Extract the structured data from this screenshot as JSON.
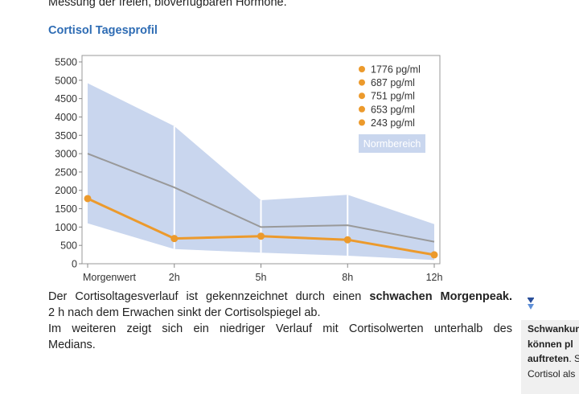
{
  "intro_text": "Messung der freien, bioverfügbaren Hormone.",
  "section_title": "Cortisol Tagesprofil",
  "chart_data": {
    "type": "line",
    "categories": [
      "Morgenwert",
      "2h",
      "5h",
      "8h",
      "12h"
    ],
    "y_ticks": [
      "0",
      "500",
      "1000",
      "1500",
      "2000",
      "2500",
      "3000",
      "3500",
      "4000",
      "4500",
      "5000",
      "5500"
    ],
    "ylim": [
      0,
      5500
    ],
    "grid": false,
    "legend_position": "top-right",
    "series": [
      {
        "values": [
          1776,
          687,
          751,
          653,
          243
        ],
        "color": "#ec9a2c",
        "labels": [
          "1776 pg/ml",
          "687 pg/ml",
          "751 pg/ml",
          "653 pg/ml",
          "243 pg/ml"
        ]
      },
      {
        "values": [
          3000,
          2080,
          1000,
          1050,
          600
        ],
        "color": "#999999"
      }
    ],
    "band": {
      "name": "Normbereich",
      "upper": [
        4920,
        3750,
        1730,
        1880,
        1080
      ],
      "lower": [
        1100,
        400,
        300,
        220,
        100
      ],
      "color": "#c9d6ee"
    }
  },
  "paragraph": {
    "line1_prefix": "Der Cortisoltagesverlauf ist gekennzeichnet durch einen ",
    "line1_bold": "schwachen Morgenpeak",
    "line1_suffix": ".",
    "line2": "2 h nach dem Erwachen sinkt der Cortisolspiegel ab.",
    "line3": "Im weiteren zeigt sich ein niedriger Verlauf mit Cortisolwerten unterhalb des",
    "line4": "Medians."
  },
  "sidebar_note": {
    "line1": "Schwankun",
    "line2": "können pl",
    "line3_bold": "auftreten",
    "line3_rest": ". S",
    "line4": "Cortisol als"
  }
}
